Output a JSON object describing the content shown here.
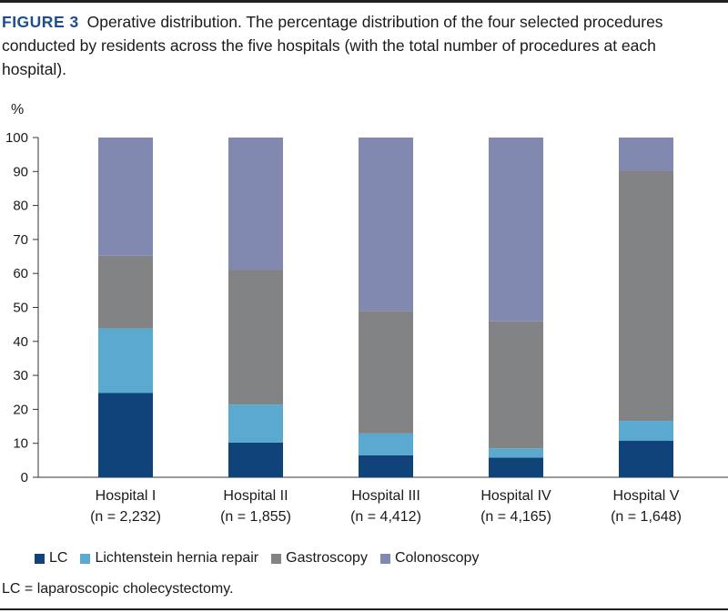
{
  "caption": {
    "label": "FIGURE 3",
    "text": "Operative distribution. The percentage distribution of the four selected procedures conducted by residents across the five hospitals (with the total number of procedures at each hospital)."
  },
  "chart_data": {
    "type": "bar",
    "stacked": true,
    "ylabel": "%",
    "ylim": [
      0,
      100
    ],
    "yticks": [
      0,
      10,
      20,
      30,
      40,
      50,
      60,
      70,
      80,
      90,
      100
    ],
    "categories": [
      "Hospital I",
      "Hospital II",
      "Hospital III",
      "Hospital IV",
      "Hospital V"
    ],
    "category_notes": [
      "(n = 2,232)",
      "(n = 1,855)",
      "(n = 4,412)",
      "(n = 4,165)",
      "(n = 1,648)"
    ],
    "series": [
      {
        "name": "LC",
        "color": "#0f437a",
        "values": [
          24.8,
          10.2,
          6.5,
          5.8,
          10.8
        ]
      },
      {
        "name": "Lichtenstein hernia repair",
        "color": "#5aa9cf",
        "values": [
          19.0,
          11.2,
          6.4,
          2.7,
          5.8
        ]
      },
      {
        "name": "Gastroscopy",
        "color": "#828385",
        "values": [
          21.4,
          39.6,
          36.0,
          37.4,
          73.6
        ]
      },
      {
        "name": "Colonoscopy",
        "color": "#8289b0",
        "values": [
          34.8,
          39.0,
          51.1,
          54.1,
          9.8
        ]
      }
    ],
    "legend_position": "bottom-left"
  },
  "footnote": "LC = laparoscopic cholecystectomy."
}
